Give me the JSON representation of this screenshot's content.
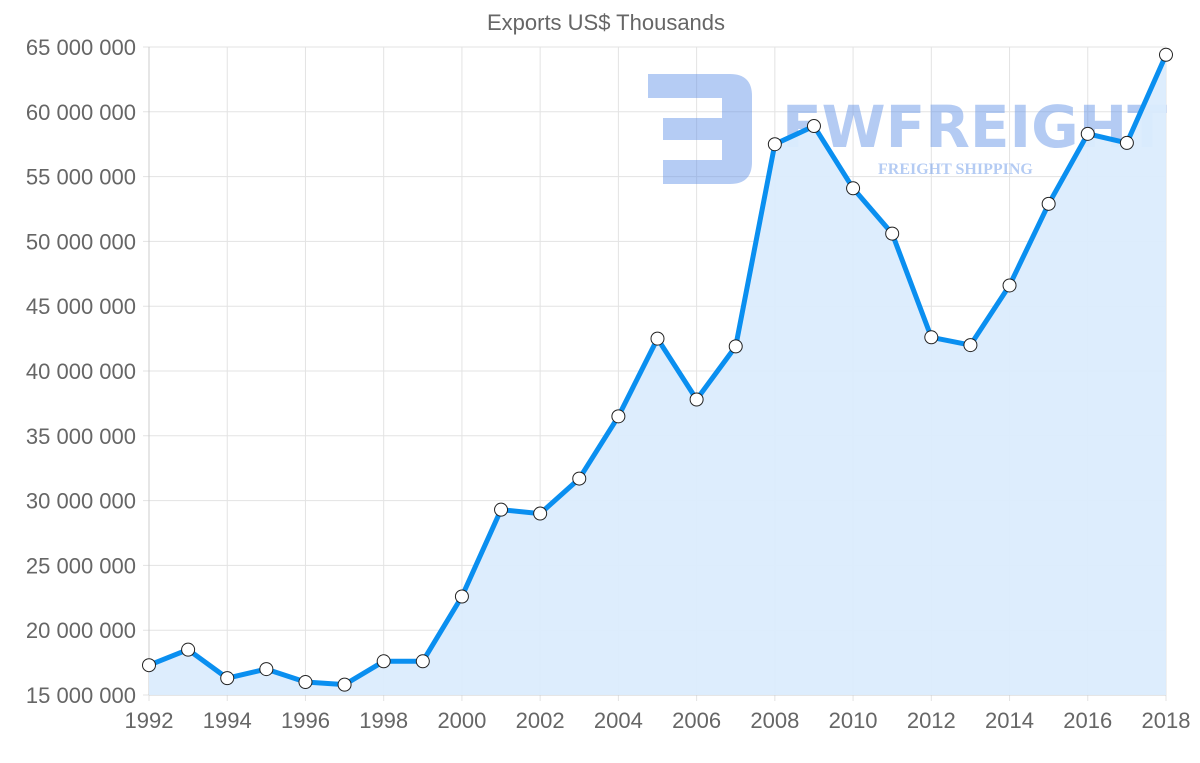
{
  "chart_data": {
    "type": "line",
    "title": "Exports US$ Thousands",
    "xlabel": "",
    "ylabel": "",
    "x": [
      1992,
      1993,
      1994,
      1995,
      1996,
      1997,
      1998,
      1999,
      2000,
      2001,
      2002,
      2003,
      2004,
      2005,
      2006,
      2007,
      2008,
      2009,
      2010,
      2011,
      2012,
      2013,
      2014,
      2015,
      2016,
      2017,
      2018
    ],
    "series": [
      {
        "name": "Exports US$ Thousands",
        "values": [
          17300000,
          18500000,
          16300000,
          17000000,
          16000000,
          15800000,
          17600000,
          17600000,
          22600000,
          29300000,
          29000000,
          31700000,
          36500000,
          42500000,
          37800000,
          41900000,
          57500000,
          58900000,
          54100000,
          50600000,
          42600000,
          42000000,
          46600000,
          52900000,
          58300000,
          57600000,
          64400000
        ],
        "color": "#0a8ff0",
        "fill": "#dbecfd"
      }
    ],
    "ylim": [
      15000000,
      65000000
    ],
    "xlim": [
      1992,
      2018
    ],
    "yticks": [
      "15 000 000",
      "20 000 000",
      "25 000 000",
      "30 000 000",
      "35 000 000",
      "40 000 000",
      "45 000 000",
      "50 000 000",
      "55 000 000",
      "60 000 000",
      "65 000 000"
    ],
    "xticks": [
      "1992",
      "1994",
      "1996",
      "1998",
      "2000",
      "2002",
      "2004",
      "2006",
      "2008",
      "2010",
      "2012",
      "2014",
      "2016",
      "2018"
    ],
    "grid": true,
    "legend": "none"
  },
  "watermark": {
    "name": "FWFREIGHT",
    "tagline": "FREIGHT SHIPPING"
  }
}
